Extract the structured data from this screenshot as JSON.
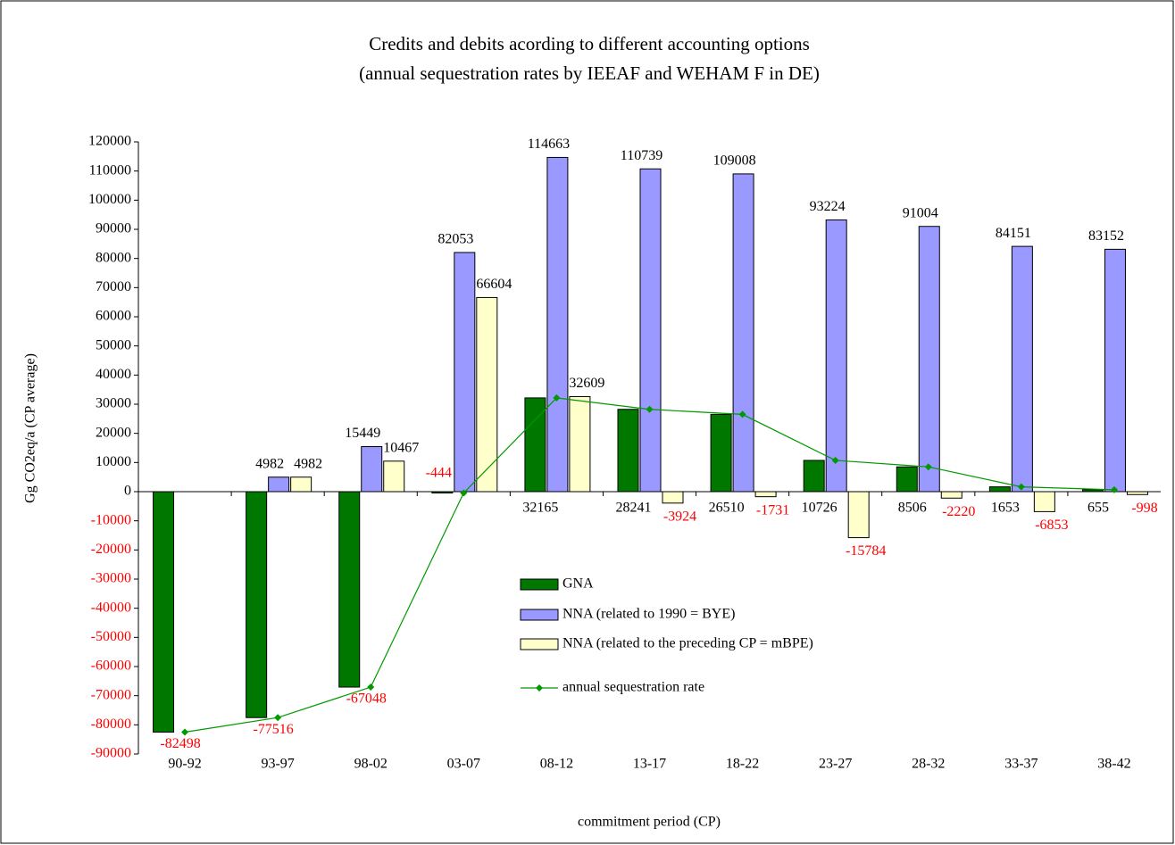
{
  "chart_data": {
    "type": "bar",
    "title": "Credits and debits acording to different accounting options",
    "subtitle": "(annual sequestration rates by IEEAF and WEHAM F in DE)",
    "y_label": "Gg CO2eq/a (CP average)",
    "x_label": "commitment period (CP)",
    "categories": [
      "90-92",
      "93-97",
      "98-02",
      "03-07",
      "08-12",
      "13-17",
      "18-22",
      "23-27",
      "28-32",
      "33-37",
      "38-42"
    ],
    "series": [
      {
        "name": "GNA",
        "color": "#007800",
        "values": [
          -82498,
          -77516,
          -67048,
          -444,
          32165,
          28241,
          26510,
          10726,
          8506,
          1653,
          655
        ]
      },
      {
        "name": "NNA (related to 1990 = BYE)",
        "color": "#9999ff",
        "values": [
          null,
          4982,
          15449,
          82053,
          114663,
          110739,
          109008,
          93224,
          91004,
          84151,
          83152
        ]
      },
      {
        "name": "NNA (related to the preceding CP = mBPE)",
        "color": "#ffffcc",
        "values": [
          null,
          4982,
          10467,
          66604,
          32609,
          -3924,
          -1731,
          -15784,
          -2220,
          -6853,
          -998
        ]
      },
      {
        "name": "annual sequestration rate",
        "color": "#009900",
        "type": "line",
        "values": [
          -82498,
          -77516,
          -67048,
          -444,
          32165,
          28241,
          26510,
          10726,
          8506,
          1653,
          655
        ]
      }
    ],
    "ylim": [
      -90000,
      120000
    ],
    "yticks": [
      120000,
      110000,
      100000,
      90000,
      80000,
      70000,
      60000,
      50000,
      40000,
      30000,
      20000,
      10000,
      0,
      -10000,
      -20000,
      -30000,
      -40000,
      -50000,
      -60000,
      -70000,
      -80000,
      -90000
    ],
    "grid": false
  }
}
